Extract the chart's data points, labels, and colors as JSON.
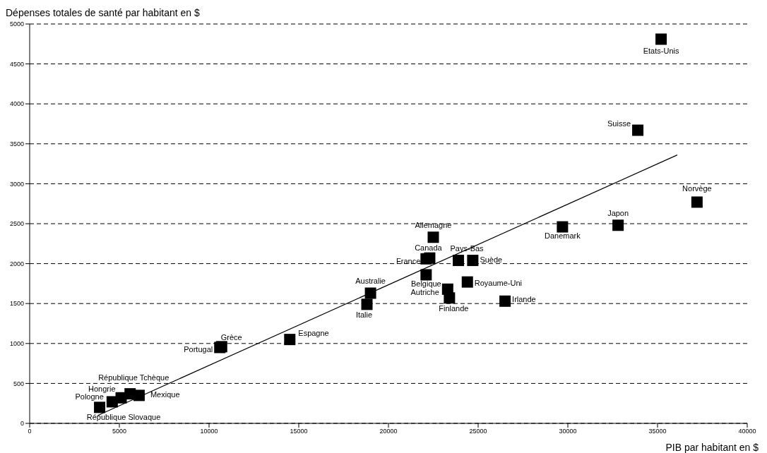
{
  "chart_data": {
    "type": "scatter",
    "ylabel": "Dépenses totales de santé par habitant en $",
    "xlabel": "PIB par habitant en $",
    "xlim": [
      0,
      40000
    ],
    "xticks": [
      0,
      5000,
      10000,
      15000,
      20000,
      25000,
      30000,
      35000,
      40000
    ],
    "ylim": [
      0,
      5000
    ],
    "yticks": [
      0,
      500,
      1000,
      1500,
      2000,
      2500,
      3000,
      3500,
      4000,
      4500,
      5000
    ],
    "grid": "y",
    "marker": "square",
    "series": [
      {
        "color": "#000000",
        "x": [
          35200,
          33900,
          37200,
          32800,
          29700,
          22500,
          22300,
          22100,
          23900,
          24700,
          22100,
          24400,
          23300,
          23400,
          26500,
          19000,
          18800,
          14500,
          10700,
          10600,
          5600,
          5100,
          4600,
          6100,
          3900
        ],
        "values": [
          4810,
          3670,
          2770,
          2480,
          2460,
          2330,
          2070,
          2060,
          2040,
          2040,
          1860,
          1770,
          1680,
          1570,
          1530,
          1630,
          1490,
          1050,
          960,
          950,
          370,
          320,
          270,
          350,
          200
        ],
        "value_labels": [
          "Etats-Unis",
          "Suisse",
          "Norvège",
          "Japon",
          "Danemark",
          "Allemagne",
          "Canada",
          "France",
          "Pays-Bas",
          "Suède",
          "Belgique",
          "Royaume-Uni",
          "Autriche",
          "Finlande",
          "Irlande",
          "Australie",
          "Italie",
          "Espagne",
          "Grèce",
          "Portugal",
          "République Tchèque",
          "Hongrie",
          "Pologne",
          "Mexique",
          "République Slovaque"
        ]
      },
      {
        "type": "line",
        "marker": "none",
        "color": "#000000",
        "x": [
          3800,
          36100
        ],
        "values": [
          100,
          3360
        ]
      }
    ]
  }
}
